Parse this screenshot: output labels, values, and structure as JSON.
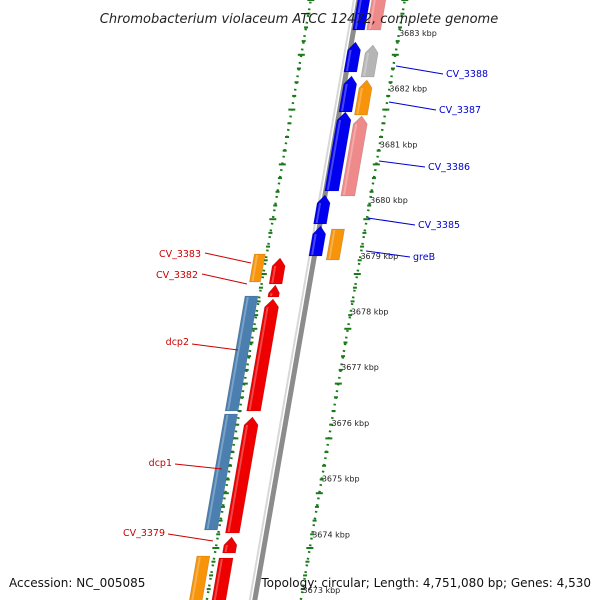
{
  "title": "Chromobacterium violaceum ATCC 12472, complete genome",
  "footer": {
    "accession": "Accession: NC_005085",
    "topology": "Topology: circular; Length: 4,751,080 bp; Genes: 4,530"
  },
  "colors": {
    "forward_cds": "#ee0000",
    "reverse_cds": "#0000ee",
    "orange_cds": "#f7940a",
    "steel_cds": "#4a7fb0",
    "pink_cds": "#ef8a8a",
    "gray_cds": "#b5b5b5",
    "backbone": "#8c8c8c",
    "tick": "#1a7a1a",
    "label_red": "#cc0000",
    "label_blue": "#0000cc"
  },
  "scale_ticks": [
    "3673 kbp",
    "3674 kbp",
    "3675 kbp",
    "3676 kbp",
    "3677 kbp",
    "3678 kbp",
    "3679 kbp",
    "3680 kbp",
    "3681 kbp",
    "3682 kbp",
    "3683 kbp"
  ],
  "gene_labels": [
    {
      "name": "CV_3388",
      "strand": "reverse"
    },
    {
      "name": "CV_3387",
      "strand": "reverse"
    },
    {
      "name": "CV_3386",
      "strand": "reverse"
    },
    {
      "name": "CV_3385",
      "strand": "reverse"
    },
    {
      "name": "greB",
      "strand": "reverse"
    },
    {
      "name": "CV_3383",
      "strand": "forward"
    },
    {
      "name": "CV_3382",
      "strand": "forward"
    },
    {
      "name": "dcp2",
      "strand": "forward"
    },
    {
      "name": "dcp1",
      "strand": "forward"
    },
    {
      "name": "CV_3379",
      "strand": "forward"
    }
  ]
}
